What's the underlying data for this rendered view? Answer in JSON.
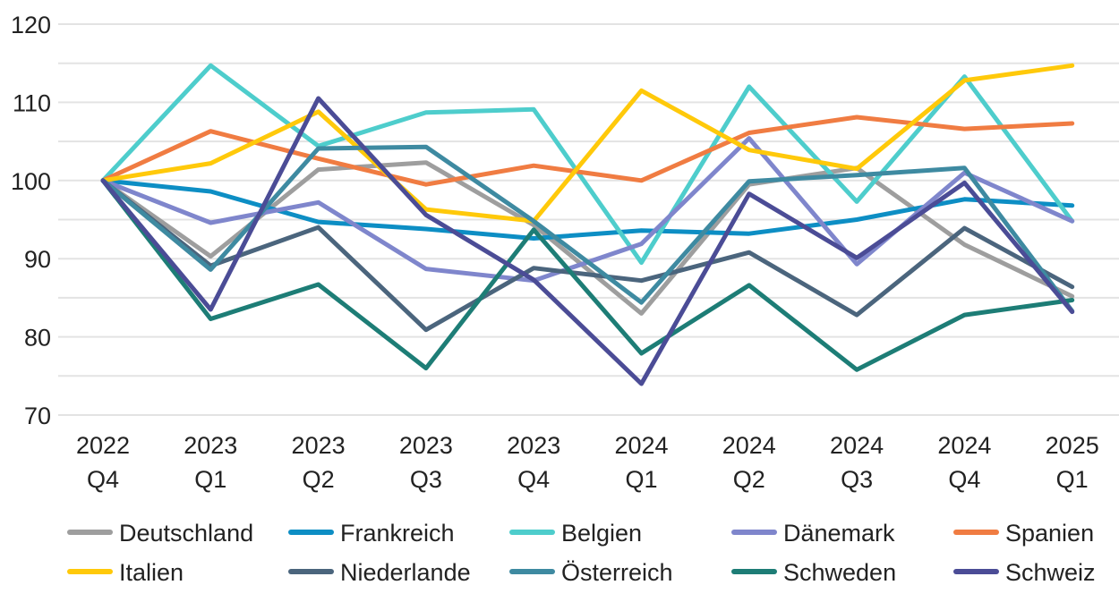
{
  "chart_data": {
    "type": "line",
    "title": "",
    "xlabel": "",
    "ylabel": "",
    "ylim": [
      70,
      120
    ],
    "yticks": [
      70,
      80,
      90,
      100,
      110,
      120
    ],
    "grid": true,
    "legend_position": "bottom",
    "categories": [
      [
        "2022",
        "Q4"
      ],
      [
        "2023",
        "Q1"
      ],
      [
        "2023",
        "Q2"
      ],
      [
        "2023",
        "Q3"
      ],
      [
        "2023",
        "Q4"
      ],
      [
        "2024",
        "Q1"
      ],
      [
        "2024",
        "Q2"
      ],
      [
        "2024",
        "Q3"
      ],
      [
        "2024",
        "Q4"
      ],
      [
        "2025",
        "Q1"
      ]
    ],
    "series": [
      {
        "name": "Deutschland",
        "color": "#9e9e9e",
        "values": [
          100,
          90.3,
          101.4,
          102.3,
          94.3,
          83.0,
          99.5,
          101.6,
          91.8,
          85.2
        ]
      },
      {
        "name": "Frankreich",
        "color": "#0d8ec4",
        "values": [
          100,
          98.6,
          94.7,
          93.8,
          92.6,
          93.6,
          93.2,
          95.0,
          97.6,
          96.8
        ]
      },
      {
        "name": "Belgien",
        "color": "#4ecdcc",
        "values": [
          100,
          114.7,
          104.4,
          108.7,
          109.1,
          89.5,
          112.0,
          97.3,
          113.3,
          94.8
        ]
      },
      {
        "name": "Dänemark",
        "color": "#7f86cc",
        "values": [
          100,
          94.6,
          97.2,
          88.7,
          87.2,
          91.9,
          105.4,
          89.3,
          101.0,
          94.8
        ]
      },
      {
        "name": "Spanien",
        "color": "#f07c42",
        "values": [
          100,
          106.3,
          102.8,
          99.5,
          101.9,
          100.0,
          106.1,
          108.1,
          106.6,
          107.3
        ]
      },
      {
        "name": "Italien",
        "color": "#ffc90a",
        "values": [
          100,
          102.2,
          108.8,
          96.3,
          94.8,
          111.5,
          103.9,
          101.5,
          112.8,
          114.7
        ]
      },
      {
        "name": "Niederlande",
        "color": "#4b657d",
        "values": [
          100,
          89.1,
          94.0,
          80.9,
          88.8,
          87.2,
          90.8,
          82.8,
          93.9,
          86.4
        ]
      },
      {
        "name": "Österreich",
        "color": "#3e8aa1",
        "values": [
          100,
          88.6,
          104.1,
          104.3,
          94.8,
          84.4,
          99.9,
          100.7,
          101.6,
          83.3
        ]
      },
      {
        "name": "Schweden",
        "color": "#1d7d76",
        "values": [
          100,
          82.3,
          86.7,
          76.0,
          93.7,
          77.9,
          86.6,
          75.8,
          82.8,
          84.7
        ]
      },
      {
        "name": "Schweiz",
        "color": "#4b4c96",
        "values": [
          100,
          83.5,
          110.5,
          95.6,
          87.3,
          74.0,
          98.3,
          90.1,
          99.7,
          83.2
        ]
      }
    ]
  }
}
